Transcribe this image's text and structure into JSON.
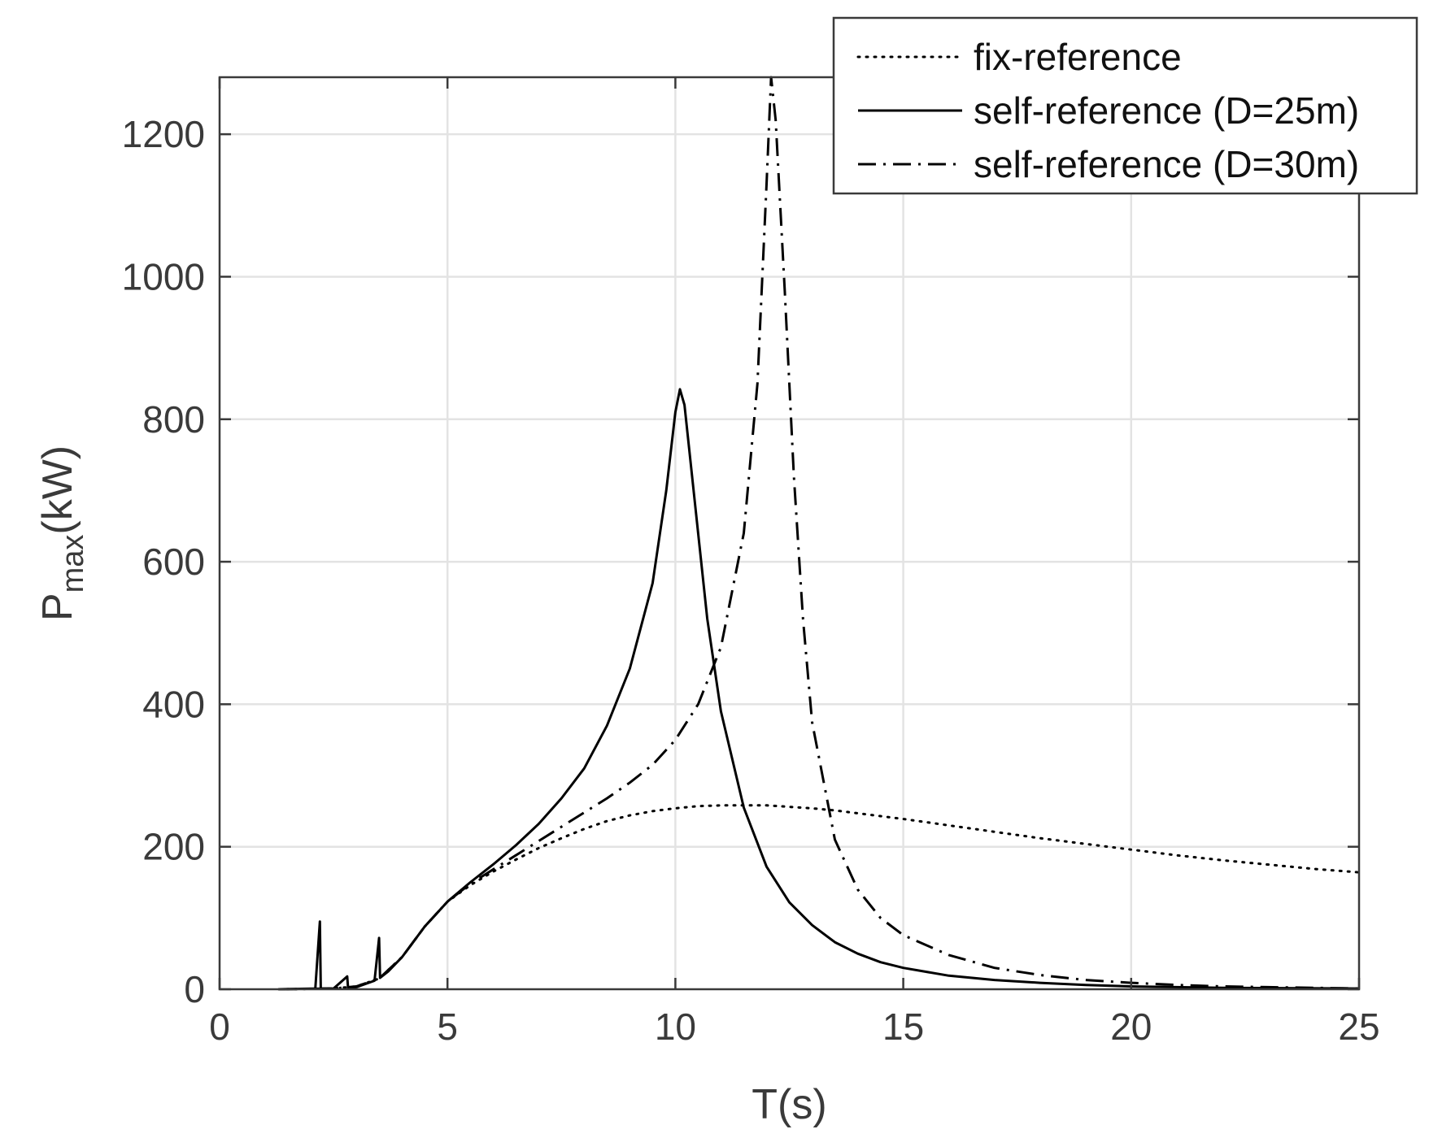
{
  "chart_data": {
    "type": "line",
    "xlabel": "T(s)",
    "ylabel": {
      "main": "P",
      "subscript": "max",
      "unit": "(kW)"
    },
    "xlim": [
      0,
      25
    ],
    "ylim": [
      0,
      1280
    ],
    "xticks": [
      0,
      5,
      10,
      15,
      20,
      25
    ],
    "yticks": [
      0,
      200,
      400,
      600,
      800,
      1000,
      1200
    ],
    "grid": true,
    "legend_position": "top-right",
    "colors": {
      "series": "#000000",
      "grid": "#e3e3e3",
      "axis": "#3a3a3a",
      "background": "#ffffff"
    },
    "series": [
      {
        "name": "fix-reference",
        "style": "dotted",
        "points": [
          [
            1.3,
            0
          ],
          [
            2.5,
            1
          ],
          [
            3.0,
            4
          ],
          [
            3.5,
            15
          ],
          [
            4.0,
            45
          ],
          [
            4.5,
            88
          ],
          [
            5.0,
            123
          ],
          [
            5.5,
            146
          ],
          [
            6.0,
            165
          ],
          [
            6.5,
            182
          ],
          [
            7.0,
            198
          ],
          [
            7.5,
            212
          ],
          [
            8.0,
            225
          ],
          [
            8.5,
            236
          ],
          [
            9.0,
            244
          ],
          [
            9.5,
            250
          ],
          [
            10.0,
            254
          ],
          [
            10.5,
            257
          ],
          [
            11.0,
            258
          ],
          [
            11.5,
            258
          ],
          [
            12.0,
            258
          ],
          [
            12.5,
            256
          ],
          [
            13.0,
            254
          ],
          [
            13.5,
            251
          ],
          [
            14.0,
            247
          ],
          [
            14.5,
            243
          ],
          [
            15.0,
            239
          ],
          [
            16.0,
            230
          ],
          [
            17.0,
            221
          ],
          [
            18.0,
            212
          ],
          [
            19.0,
            204
          ],
          [
            20.0,
            196
          ],
          [
            21.0,
            188
          ],
          [
            22.0,
            181
          ],
          [
            23.0,
            175
          ],
          [
            24.0,
            169
          ],
          [
            25.0,
            164
          ]
        ]
      },
      {
        "name": "self-reference (D=25m)",
        "style": "solid",
        "points": [
          [
            1.3,
            0
          ],
          [
            2.1,
            1
          ],
          [
            2.2,
            95
          ],
          [
            2.22,
            1
          ],
          [
            2.5,
            1
          ],
          [
            2.8,
            18
          ],
          [
            2.82,
            1
          ],
          [
            3.0,
            3
          ],
          [
            3.4,
            12
          ],
          [
            3.5,
            72
          ],
          [
            3.52,
            16
          ],
          [
            3.7,
            25
          ],
          [
            4.0,
            45
          ],
          [
            4.5,
            88
          ],
          [
            5.0,
            123
          ],
          [
            5.5,
            150
          ],
          [
            6.0,
            175
          ],
          [
            6.5,
            202
          ],
          [
            7.0,
            232
          ],
          [
            7.5,
            268
          ],
          [
            8.0,
            310
          ],
          [
            8.5,
            370
          ],
          [
            9.0,
            450
          ],
          [
            9.5,
            570
          ],
          [
            9.8,
            700
          ],
          [
            10.0,
            810
          ],
          [
            10.1,
            842
          ],
          [
            10.2,
            820
          ],
          [
            10.4,
            700
          ],
          [
            10.7,
            520
          ],
          [
            11.0,
            390
          ],
          [
            11.5,
            255
          ],
          [
            12.0,
            172
          ],
          [
            12.5,
            122
          ],
          [
            13.0,
            90
          ],
          [
            13.5,
            66
          ],
          [
            14.0,
            50
          ],
          [
            14.5,
            38
          ],
          [
            15.0,
            30
          ],
          [
            16.0,
            19
          ],
          [
            17.0,
            13
          ],
          [
            18.0,
            9
          ],
          [
            19.0,
            6
          ],
          [
            20.0,
            4
          ],
          [
            22.0,
            2
          ],
          [
            25.0,
            1
          ]
        ]
      },
      {
        "name": "self-reference (D=30m)",
        "style": "dash-dot",
        "points": [
          [
            1.3,
            0
          ],
          [
            2.5,
            1
          ],
          [
            3.0,
            4
          ],
          [
            3.5,
            15
          ],
          [
            4.0,
            45
          ],
          [
            4.5,
            88
          ],
          [
            5.0,
            123
          ],
          [
            5.5,
            148
          ],
          [
            6.0,
            168
          ],
          [
            6.5,
            188
          ],
          [
            7.0,
            208
          ],
          [
            7.5,
            228
          ],
          [
            8.0,
            248
          ],
          [
            8.5,
            268
          ],
          [
            9.0,
            290
          ],
          [
            9.5,
            315
          ],
          [
            10.0,
            350
          ],
          [
            10.5,
            400
          ],
          [
            11.0,
            480
          ],
          [
            11.5,
            640
          ],
          [
            11.8,
            850
          ],
          [
            12.0,
            1130
          ],
          [
            12.1,
            1280
          ],
          [
            12.2,
            1220
          ],
          [
            12.4,
            980
          ],
          [
            12.6,
            720
          ],
          [
            12.8,
            520
          ],
          [
            13.0,
            375
          ],
          [
            13.5,
            210
          ],
          [
            14.0,
            140
          ],
          [
            14.5,
            100
          ],
          [
            15.0,
            76
          ],
          [
            16.0,
            48
          ],
          [
            17.0,
            30
          ],
          [
            18.0,
            20
          ],
          [
            19.0,
            13
          ],
          [
            20.0,
            9
          ],
          [
            21.0,
            6
          ],
          [
            22.0,
            4
          ],
          [
            23.0,
            3
          ],
          [
            25.0,
            1
          ]
        ]
      }
    ]
  }
}
